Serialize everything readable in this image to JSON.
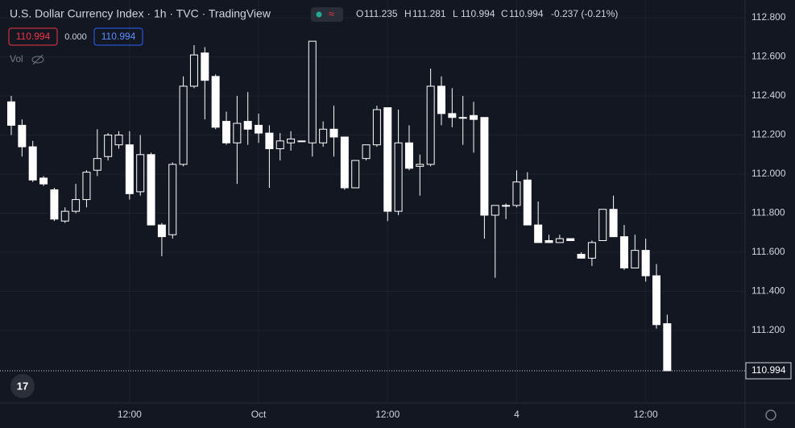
{
  "header": {
    "title": "U.S. Dollar Currency Index · 1h · TVC · TradingView",
    "ohlc": [
      {
        "key": "O",
        "text": "111.235"
      },
      {
        "key": "H",
        "text": "111.281"
      },
      {
        "key": "L",
        "text": "110.994"
      },
      {
        "key": "C",
        "text": "110.994"
      }
    ],
    "change": "-0.237 (-0.21%)",
    "sell": "110.994",
    "spread": "0.000",
    "buy": "110.994",
    "volume_label": "Vol"
  },
  "chart_data": {
    "type": "candlestick",
    "color": "#ffffff",
    "grid": true,
    "categories": [
      null,
      null,
      null,
      null,
      null,
      null,
      null,
      null,
      null,
      null,
      null,
      "12:00",
      null,
      null,
      null,
      null,
      null,
      null,
      null,
      null,
      null,
      null,
      null,
      "Oct",
      null,
      null,
      null,
      null,
      null,
      null,
      null,
      null,
      null,
      null,
      null,
      "12:00",
      null,
      null,
      null,
      null,
      null,
      null,
      null,
      null,
      null,
      null,
      null,
      "4",
      null,
      null,
      null,
      null,
      null,
      null,
      null,
      null,
      null,
      null,
      null,
      "12:00",
      null,
      null
    ],
    "series": [
      {
        "name": "U.S. Dollar Currency Index",
        "open": [
          112.37,
          112.25,
          112.14,
          111.98,
          111.92,
          111.76,
          111.81,
          111.87,
          112.02,
          112.09,
          112.15,
          112.15,
          111.91,
          112.1,
          111.74,
          111.69,
          112.05,
          112.45,
          112.62,
          112.5,
          112.27,
          112.16,
          112.27,
          112.25,
          112.21,
          112.13,
          112.16,
          112.17,
          112.16,
          112.16,
          112.23,
          112.19,
          111.93,
          112.08,
          112.15,
          112.34,
          111.81,
          112.16,
          112.04,
          112.05,
          112.45,
          112.31,
          112.29,
          112.3,
          112.29,
          111.79,
          111.84,
          111.84,
          111.97,
          111.74,
          111.66,
          111.65,
          111.67,
          111.59,
          111.57,
          111.66,
          111.82,
          111.68,
          111.52,
          111.61,
          111.48,
          111.235
        ],
        "high": [
          112.4,
          112.28,
          112.17,
          111.99,
          111.93,
          111.83,
          111.95,
          112.02,
          112.23,
          112.21,
          112.22,
          112.22,
          112.2,
          112.11,
          111.75,
          112.06,
          112.5,
          112.66,
          112.65,
          112.51,
          112.32,
          112.4,
          112.42,
          112.31,
          112.25,
          112.21,
          112.22,
          112.17,
          112.68,
          112.27,
          112.35,
          112.19,
          112.07,
          112.15,
          112.35,
          112.34,
          112.33,
          112.25,
          112.1,
          112.54,
          112.5,
          112.44,
          112.4,
          112.37,
          112.29,
          111.84,
          111.85,
          112.02,
          112.01,
          111.86,
          111.69,
          111.69,
          111.67,
          111.6,
          111.66,
          111.82,
          111.89,
          111.74,
          111.69,
          111.67,
          111.54,
          111.281
        ],
        "low": [
          112.2,
          112.09,
          111.96,
          111.94,
          111.76,
          111.75,
          111.8,
          111.83,
          111.99,
          112.07,
          112.13,
          111.87,
          111.89,
          111.74,
          111.58,
          111.67,
          112.04,
          112.44,
          112.28,
          112.23,
          112.15,
          111.95,
          112.15,
          112.16,
          111.93,
          112.07,
          112.12,
          112.17,
          112.09,
          112.14,
          112.09,
          111.92,
          111.93,
          112.07,
          112.14,
          111.76,
          111.79,
          112.02,
          111.89,
          112.04,
          112.25,
          112.24,
          112.15,
          112.11,
          111.67,
          111.47,
          111.77,
          111.83,
          111.74,
          111.65,
          111.65,
          111.65,
          111.66,
          111.57,
          111.53,
          111.66,
          111.68,
          111.51,
          111.52,
          111.45,
          111.21,
          110.994
        ],
        "close": [
          112.25,
          112.14,
          111.97,
          111.95,
          111.77,
          111.81,
          111.87,
          112.01,
          112.08,
          112.2,
          112.2,
          111.9,
          112.1,
          111.74,
          111.68,
          112.05,
          112.45,
          112.61,
          112.48,
          112.24,
          112.16,
          112.26,
          112.23,
          112.21,
          112.13,
          112.17,
          112.18,
          112.17,
          112.68,
          112.23,
          112.19,
          111.93,
          112.07,
          112.15,
          112.33,
          111.81,
          112.16,
          112.03,
          112.05,
          112.45,
          112.31,
          112.29,
          112.29,
          112.28,
          111.79,
          111.84,
          111.84,
          111.96,
          111.74,
          111.65,
          111.65,
          111.67,
          111.66,
          111.57,
          111.65,
          111.82,
          111.68,
          111.52,
          111.61,
          111.48,
          111.23,
          110.994
        ]
      }
    ],
    "last_price": {
      "value": 110.994,
      "label": "110.994"
    },
    "ylim": [
      110.829,
      112.891
    ],
    "yticks": [
      {
        "value": 112.8,
        "label": "112.800"
      },
      {
        "value": 112.6,
        "label": "112.600"
      },
      {
        "value": 112.4,
        "label": "112.400"
      },
      {
        "value": 112.2,
        "label": "112.200"
      },
      {
        "value": 112.0,
        "label": "112.000"
      },
      {
        "value": 111.8,
        "label": "111.800"
      },
      {
        "value": 111.6,
        "label": "111.600"
      },
      {
        "value": 111.4,
        "label": "111.400"
      },
      {
        "value": 111.2,
        "label": "111.200"
      }
    ]
  }
}
